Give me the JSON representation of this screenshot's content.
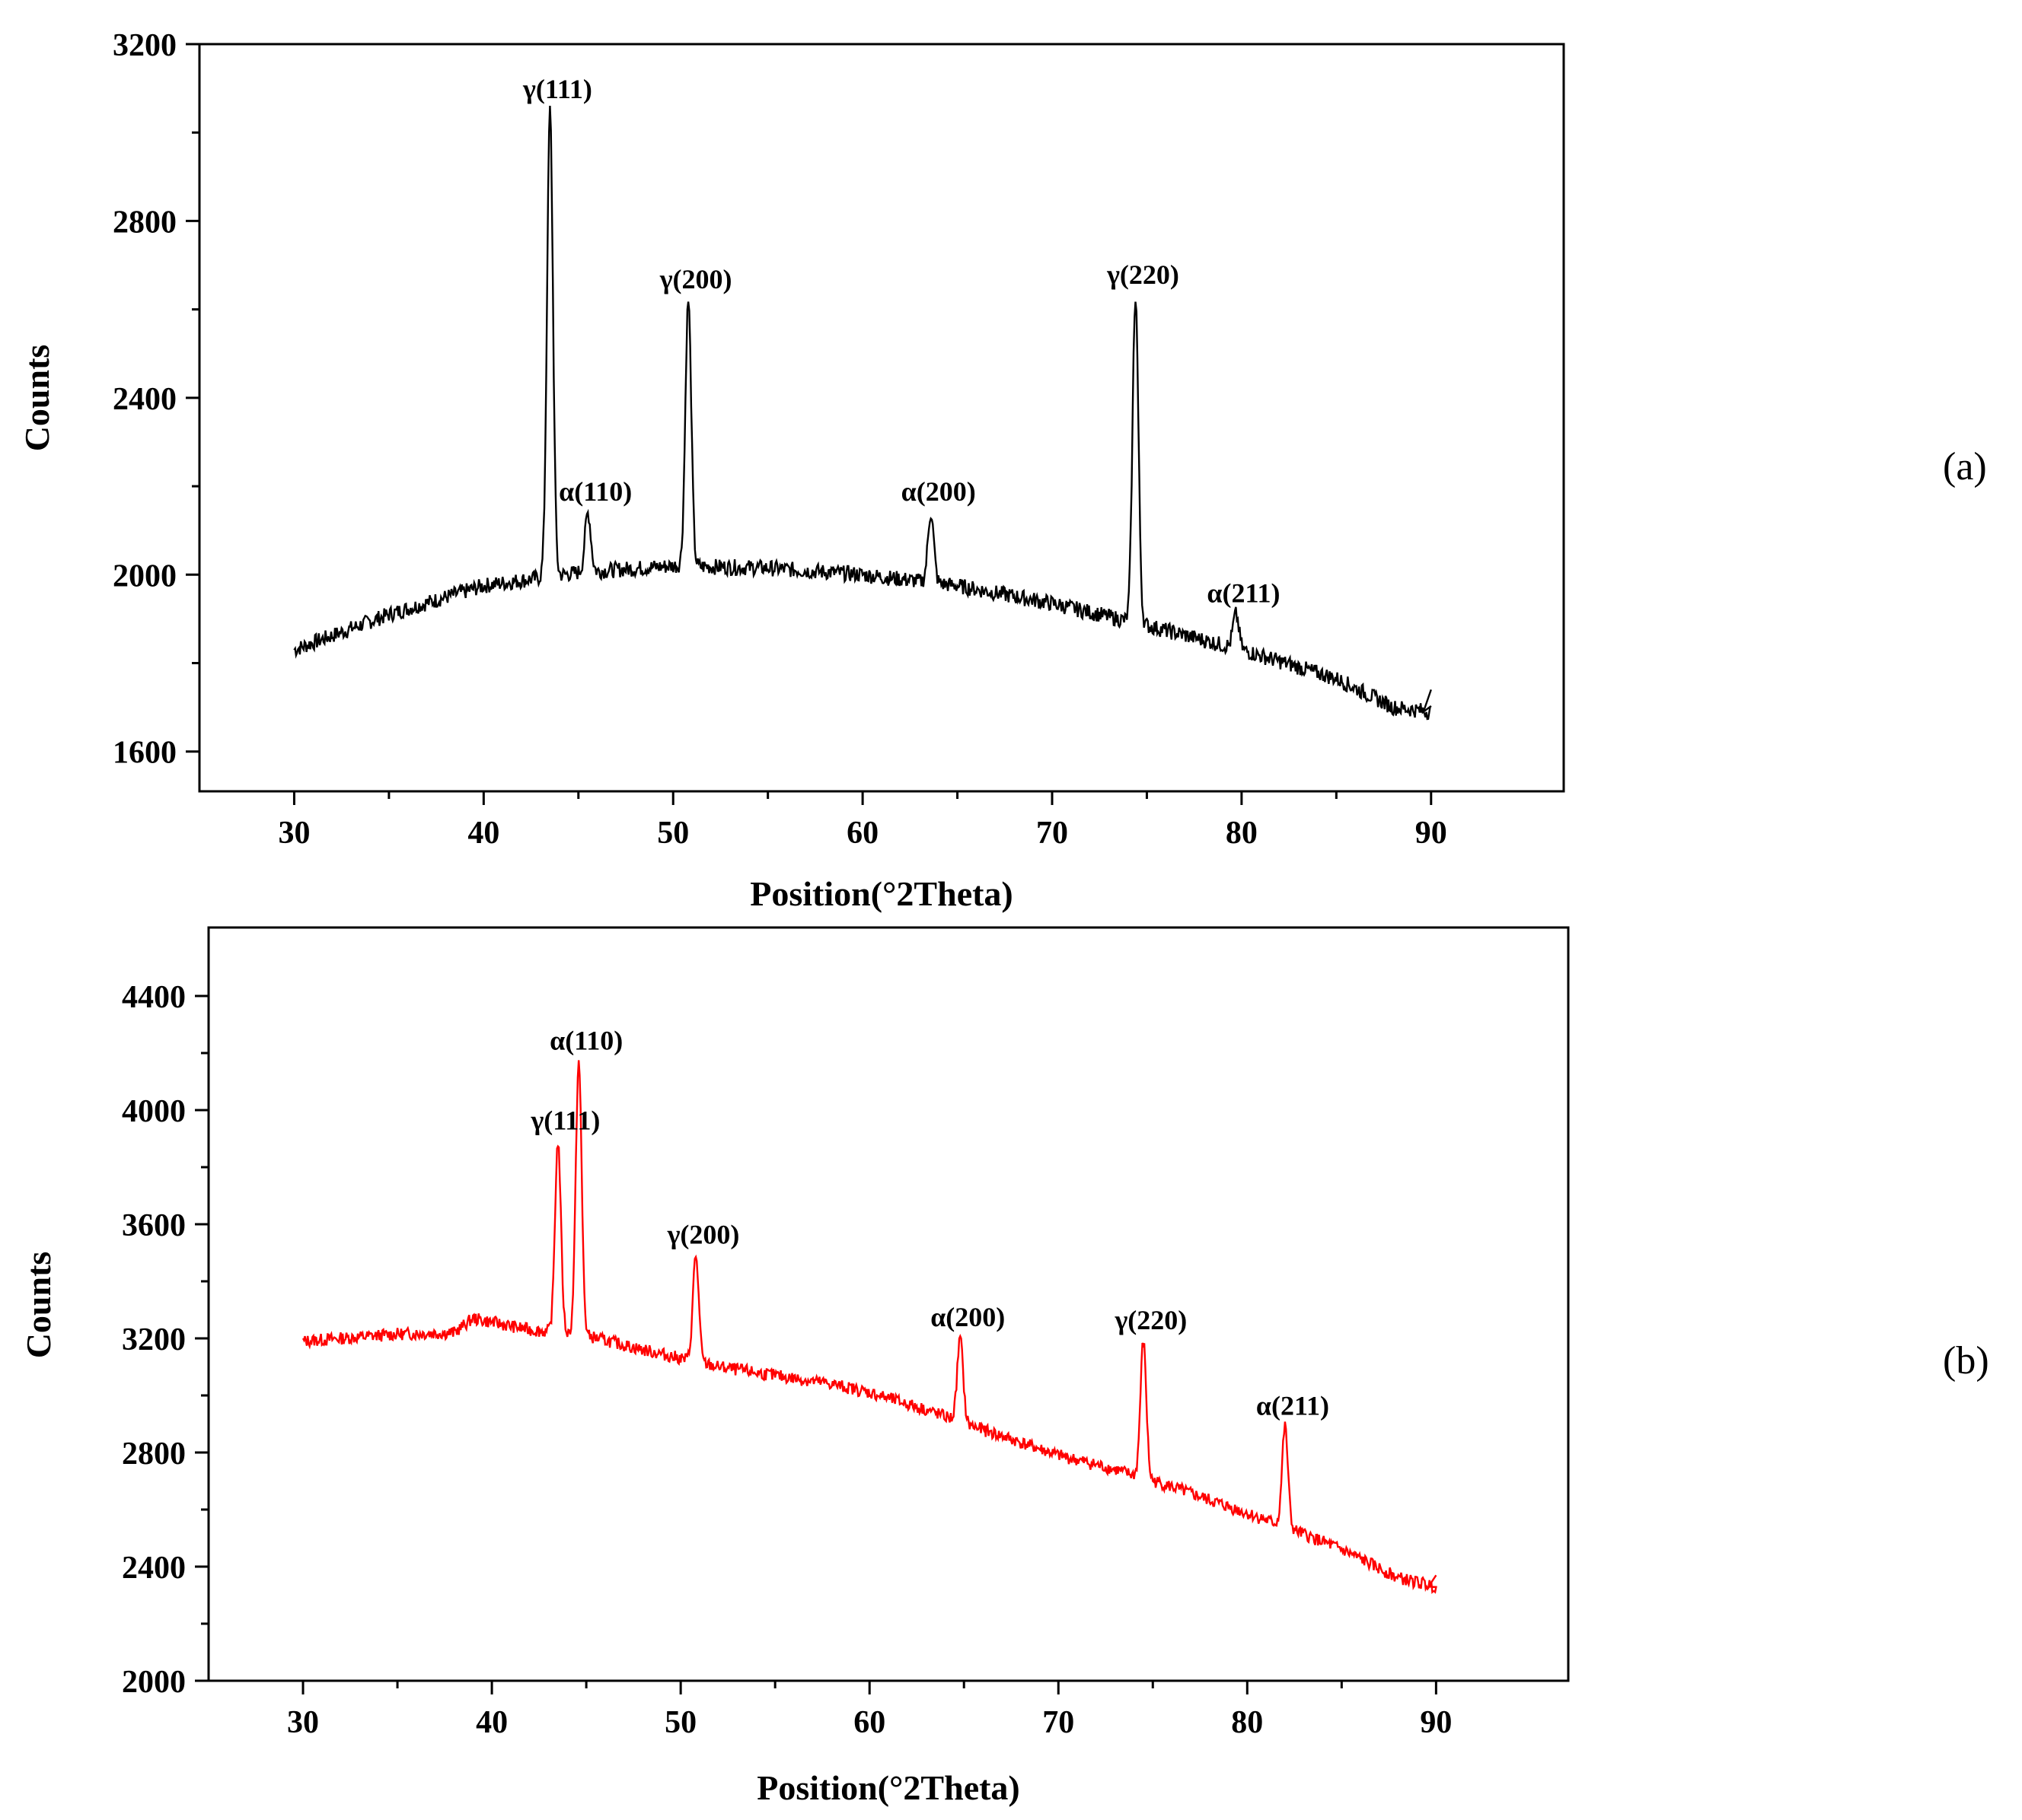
{
  "chart_data": [
    {
      "type": "line",
      "panel_label": "(a)",
      "xlabel": "Position(°2Theta)",
      "ylabel": "Counts",
      "xlim": [
        25,
        97
      ],
      "ylim": [
        1510,
        3200
      ],
      "xticks": [
        30,
        40,
        50,
        60,
        70,
        80,
        90
      ],
      "yticks": [
        1600,
        2000,
        2400,
        2800,
        3200
      ],
      "line_color": "#000000",
      "baseline": [
        [
          30,
          1830
        ],
        [
          35,
          1910
        ],
        [
          40,
          1975
        ],
        [
          45,
          2005
        ],
        [
          50,
          2020
        ],
        [
          55,
          2015
        ],
        [
          60,
          2000
        ],
        [
          65,
          1975
        ],
        [
          70,
          1935
        ],
        [
          75,
          1885
        ],
        [
          80,
          1830
        ],
        [
          85,
          1765
        ],
        [
          88,
          1700
        ],
        [
          90,
          1690
        ]
      ],
      "baseline_end": [
        [
          89.6,
          1690
        ],
        [
          90.0,
          1740
        ]
      ],
      "peaks": [
        {
          "label": "γ(111)",
          "x": 43.5,
          "y": 3050
        },
        {
          "label": "α(110)",
          "x": 45.5,
          "y": 2140
        },
        {
          "label": "γ(200)",
          "x": 50.8,
          "y": 2620
        },
        {
          "label": "α(200)",
          "x": 63.6,
          "y": 2140
        },
        {
          "label": "γ(220)",
          "x": 74.4,
          "y": 2630
        },
        {
          "label": "α(211)",
          "x": 79.7,
          "y": 1910
        }
      ]
    },
    {
      "type": "line",
      "panel_label": "(b)",
      "xlabel": "Position(°2Theta)",
      "ylabel": "Counts",
      "xlim": [
        25,
        97
      ],
      "ylim": [
        2000,
        4640
      ],
      "xticks": [
        30,
        40,
        50,
        60,
        70,
        80,
        90
      ],
      "yticks": [
        2000,
        2400,
        2800,
        3200,
        3600,
        4000,
        4400
      ],
      "line_color": "#ff0000",
      "baseline": [
        [
          30,
          3190
        ],
        [
          35,
          3215
        ],
        [
          38,
          3220
        ],
        [
          39,
          3270
        ],
        [
          42,
          3230
        ],
        [
          45,
          3210
        ],
        [
          48,
          3160
        ],
        [
          52,
          3100
        ],
        [
          55,
          3070
        ],
        [
          58,
          3040
        ],
        [
          60,
          3010
        ],
        [
          63,
          2950
        ],
        [
          66,
          2880
        ],
        [
          70,
          2790
        ],
        [
          73,
          2740
        ],
        [
          76,
          2680
        ],
        [
          79,
          2610
        ],
        [
          82,
          2540
        ],
        [
          85,
          2460
        ],
        [
          88,
          2360
        ],
        [
          90,
          2330
        ]
      ],
      "baseline_end": [
        [
          89.6,
          2330
        ],
        [
          90.0,
          2370
        ]
      ],
      "peaks": [
        {
          "label": "γ(111)",
          "x": 43.5,
          "y": 3890
        },
        {
          "label": "α(110)",
          "x": 44.6,
          "y": 4170
        },
        {
          "label": "γ(200)",
          "x": 50.8,
          "y": 3490
        },
        {
          "label": "α(200)",
          "x": 64.8,
          "y": 3200
        },
        {
          "label": "γ(220)",
          "x": 74.5,
          "y": 3190
        },
        {
          "label": "α(211)",
          "x": 82.0,
          "y": 2890
        }
      ]
    }
  ]
}
